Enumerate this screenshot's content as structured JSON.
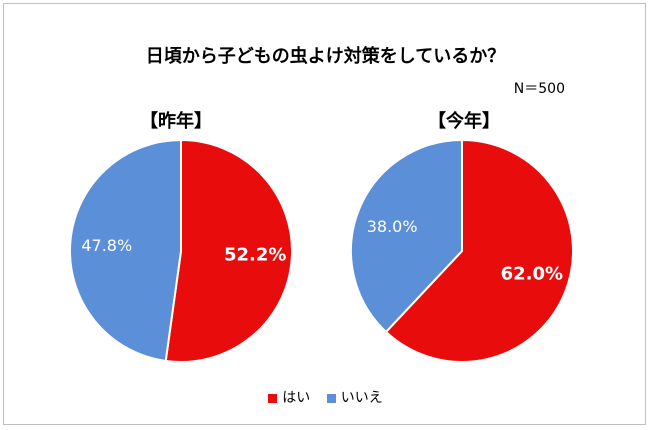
{
  "chart_data": {
    "type": "pie",
    "title": "日頃から子どもの虫よけ対策をしているか？",
    "sample_label": "N＝500",
    "categories": [
      "はい",
      "いいえ"
    ],
    "colors": [
      "#e90c0c",
      "#5b8fd8"
    ],
    "legend_position": "bottom",
    "charts": [
      {
        "subtitle": "【昨年】",
        "values": [
          52.2,
          47.8
        ],
        "labels": [
          "52.2%",
          "47.8%"
        ]
      },
      {
        "subtitle": "【今年】",
        "values": [
          62.0,
          38.0
        ],
        "labels": [
          "62.0%",
          "38.0%"
        ]
      }
    ]
  }
}
